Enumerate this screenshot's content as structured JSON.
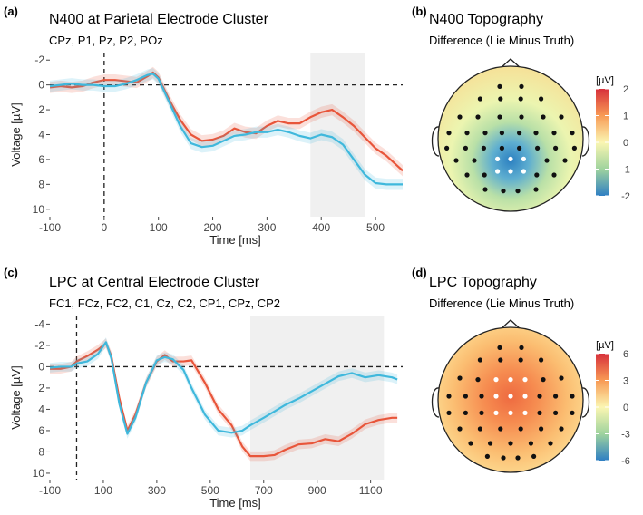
{
  "panel_a": {
    "label": "(a)",
    "title": "N400 at Parietal Electrode Cluster",
    "subtitle": "CPz, P1, Pz, P2, POz"
  },
  "panel_b": {
    "label": "(b)",
    "title": "N400 Topography",
    "subtitle": "Difference (Lie Minus Truth)",
    "colorbar": {
      "label": "[µV]",
      "ticks": [
        "2",
        "1",
        "0",
        "-1",
        "-2"
      ],
      "min": -2,
      "max": 2
    },
    "electrodes": {
      "white": [
        [
          -0.18,
          0.28
        ],
        [
          0,
          0.28
        ],
        [
          0.18,
          0.28
        ],
        [
          -0.18,
          0.45
        ],
        [
          0,
          0.45
        ],
        [
          0.18,
          0.45
        ]
      ],
      "black": [
        [
          -0.15,
          -0.72
        ],
        [
          0.15,
          -0.72
        ],
        [
          -0.42,
          -0.55
        ],
        [
          -0.14,
          -0.55
        ],
        [
          0.14,
          -0.55
        ],
        [
          0.42,
          -0.55
        ],
        [
          -0.7,
          -0.3
        ],
        [
          -0.45,
          -0.3
        ],
        [
          -0.15,
          -0.3
        ],
        [
          0.15,
          -0.3
        ],
        [
          0.45,
          -0.3
        ],
        [
          0.7,
          -0.3
        ],
        [
          -0.85,
          -0.08
        ],
        [
          -0.6,
          -0.08
        ],
        [
          -0.35,
          -0.08
        ],
        [
          -0.12,
          -0.08
        ],
        [
          0.12,
          -0.08
        ],
        [
          0.35,
          -0.08
        ],
        [
          0.6,
          -0.08
        ],
        [
          0.85,
          -0.08
        ],
        [
          -0.88,
          0.13
        ],
        [
          -0.62,
          0.13
        ],
        [
          -0.37,
          0.13
        ],
        [
          -0.12,
          0.13
        ],
        [
          0.12,
          0.13
        ],
        [
          0.37,
          0.13
        ],
        [
          0.62,
          0.13
        ],
        [
          0.88,
          0.13
        ],
        [
          -0.75,
          0.3
        ],
        [
          -0.5,
          0.3
        ],
        [
          0.5,
          0.3
        ],
        [
          0.75,
          0.3
        ],
        [
          -0.6,
          0.5
        ],
        [
          -0.36,
          0.5
        ],
        [
          0.36,
          0.5
        ],
        [
          0.6,
          0.5
        ],
        [
          -0.35,
          0.7
        ],
        [
          -0.1,
          0.72
        ],
        [
          0.1,
          0.72
        ],
        [
          0.35,
          0.7
        ]
      ]
    }
  },
  "panel_c": {
    "label": "(c)",
    "title": "LPC at Central Electrode Cluster",
    "subtitle": "FC1, FCz, FC2, C1, Cz, C2, CP1, CPz, CP2"
  },
  "panel_d": {
    "label": "(d)",
    "title": "LPC Topography",
    "subtitle": "Difference (Lie Minus Truth)",
    "colorbar": {
      "label": "[µV]",
      "ticks": [
        "6",
        "3",
        "0",
        "-3",
        "-6"
      ],
      "min": -6,
      "max": 6
    },
    "electrodes": {
      "white": [
        [
          -0.2,
          -0.28
        ],
        [
          0,
          -0.28
        ],
        [
          0.2,
          -0.28
        ],
        [
          -0.2,
          -0.05
        ],
        [
          0,
          -0.05
        ],
        [
          0.2,
          -0.05
        ],
        [
          -0.2,
          0.18
        ],
        [
          0,
          0.18
        ],
        [
          0.2,
          0.18
        ]
      ],
      "black": [
        [
          -0.15,
          -0.72
        ],
        [
          0.15,
          -0.72
        ],
        [
          -0.42,
          -0.55
        ],
        [
          -0.14,
          -0.55
        ],
        [
          0.14,
          -0.55
        ],
        [
          0.42,
          -0.55
        ],
        [
          -0.7,
          -0.3
        ],
        [
          -0.45,
          -0.28
        ],
        [
          0.45,
          -0.28
        ],
        [
          0.7,
          -0.3
        ],
        [
          -0.85,
          -0.05
        ],
        [
          -0.62,
          -0.05
        ],
        [
          -0.4,
          -0.05
        ],
        [
          0.4,
          -0.05
        ],
        [
          0.62,
          -0.05
        ],
        [
          0.85,
          -0.05
        ],
        [
          -0.85,
          0.18
        ],
        [
          -0.62,
          0.18
        ],
        [
          -0.4,
          0.18
        ],
        [
          0.4,
          0.18
        ],
        [
          0.62,
          0.18
        ],
        [
          0.85,
          0.18
        ],
        [
          -0.7,
          0.4
        ],
        [
          -0.42,
          0.4
        ],
        [
          -0.14,
          0.4
        ],
        [
          0.14,
          0.4
        ],
        [
          0.42,
          0.4
        ],
        [
          0.7,
          0.4
        ],
        [
          -0.55,
          0.6
        ],
        [
          -0.28,
          0.6
        ],
        [
          0,
          0.6
        ],
        [
          0.28,
          0.6
        ],
        [
          0.55,
          0.6
        ],
        [
          -0.32,
          0.78
        ],
        [
          -0.1,
          0.8
        ],
        [
          0.1,
          0.8
        ],
        [
          0.32,
          0.78
        ]
      ]
    }
  },
  "colors": {
    "lie": "#e8553a",
    "truth": "#3fb8dc",
    "shade": "#f0f0f0",
    "zero_line": "#222222"
  },
  "chart_data": [
    {
      "id": "a",
      "type": "line",
      "xlabel": "Time [ms]",
      "ylabel": "Voltage [µV]",
      "xlim": [
        -100,
        550
      ],
      "ylim": [
        -2.6,
        10.6
      ],
      "y_inverted": true,
      "xticks": [
        -100,
        0,
        100,
        200,
        300,
        400,
        500
      ],
      "yticks": [
        -2,
        0,
        2,
        4,
        6,
        8,
        10
      ],
      "shaded_window": [
        380,
        480
      ],
      "onset_x": 0,
      "series": [
        {
          "name": "red",
          "color": "#e8553a",
          "x": [
            -100,
            -80,
            -60,
            -40,
            -20,
            0,
            20,
            40,
            60,
            80,
            90,
            100,
            120,
            140,
            160,
            180,
            200,
            220,
            240,
            260,
            280,
            300,
            320,
            340,
            360,
            380,
            400,
            420,
            440,
            460,
            480,
            500,
            520,
            540,
            550
          ],
          "y": [
            0.2,
            0.1,
            0.2,
            0.1,
            -0.2,
            -0.4,
            -0.4,
            -0.3,
            -0.2,
            -0.7,
            -1.0,
            -0.6,
            1.2,
            2.8,
            4.0,
            4.5,
            4.4,
            4.1,
            3.5,
            3.8,
            3.9,
            3.3,
            2.9,
            3.1,
            3.1,
            2.6,
            2.2,
            2.0,
            2.6,
            3.3,
            4.2,
            5.1,
            5.7,
            6.5,
            6.9
          ]
        },
        {
          "name": "blue",
          "color": "#3fb8dc",
          "x": [
            -100,
            -80,
            -60,
            -40,
            -20,
            0,
            20,
            40,
            60,
            80,
            90,
            100,
            120,
            140,
            160,
            180,
            200,
            220,
            240,
            260,
            280,
            300,
            320,
            340,
            360,
            380,
            400,
            420,
            440,
            460,
            480,
            500,
            520,
            540,
            550
          ],
          "y": [
            0.1,
            0.0,
            -0.1,
            0.0,
            0.0,
            0.1,
            0.1,
            -0.1,
            -0.4,
            -0.8,
            -0.9,
            -0.5,
            1.4,
            3.3,
            4.7,
            5.0,
            4.9,
            4.5,
            4.1,
            4.0,
            3.8,
            3.8,
            3.6,
            3.8,
            4.1,
            4.3,
            4.0,
            4.2,
            4.8,
            6.0,
            7.2,
            7.9,
            8.0,
            8.0,
            8.0
          ]
        }
      ]
    },
    {
      "id": "c",
      "type": "line",
      "xlabel": "Time [ms]",
      "ylabel": "Voltage [µV]",
      "xlim": [
        -100,
        1220
      ],
      "ylim": [
        -4.8,
        10.6
      ],
      "y_inverted": true,
      "xticks": [
        -100,
        100,
        300,
        500,
        700,
        900,
        1100
      ],
      "yticks": [
        -4,
        -2,
        0,
        2,
        4,
        6,
        8,
        10
      ],
      "shaded_window": [
        650,
        1150
      ],
      "onset_x": 0,
      "series": [
        {
          "name": "red",
          "color": "#e8553a",
          "x": [
            -100,
            -60,
            -20,
            0,
            40,
            80,
            110,
            130,
            160,
            190,
            220,
            260,
            300,
            330,
            360,
            400,
            430,
            480,
            530,
            580,
            620,
            650,
            700,
            740,
            780,
            830,
            880,
            930,
            980,
            1030,
            1080,
            1130,
            1180,
            1200
          ],
          "y": [
            0.2,
            0.2,
            0.0,
            -0.5,
            -1.0,
            -1.6,
            -2.2,
            -1.0,
            3.0,
            6.0,
            4.5,
            1.5,
            -0.5,
            -1.1,
            -0.5,
            -0.5,
            -0.6,
            1.5,
            4.0,
            5.5,
            7.5,
            8.4,
            8.4,
            8.3,
            7.8,
            7.3,
            7.2,
            6.8,
            7.0,
            6.3,
            5.4,
            5.0,
            4.8,
            4.8
          ]
        },
        {
          "name": "blue",
          "color": "#3fb8dc",
          "x": [
            -100,
            -60,
            -20,
            0,
            40,
            80,
            110,
            130,
            160,
            190,
            220,
            260,
            300,
            330,
            360,
            400,
            430,
            480,
            530,
            580,
            620,
            650,
            700,
            740,
            780,
            830,
            880,
            930,
            980,
            1030,
            1080,
            1130,
            1180,
            1200
          ],
          "y": [
            0.1,
            0.0,
            0.0,
            -0.3,
            -0.5,
            -1.2,
            -2.3,
            -0.8,
            3.5,
            6.3,
            4.8,
            1.5,
            -0.6,
            -0.9,
            -0.7,
            0.3,
            2.0,
            4.5,
            6.0,
            6.2,
            6.0,
            5.5,
            4.8,
            4.2,
            3.6,
            3.0,
            2.3,
            1.6,
            0.9,
            0.6,
            1.0,
            0.8,
            1.0,
            1.2
          ]
        }
      ]
    }
  ]
}
